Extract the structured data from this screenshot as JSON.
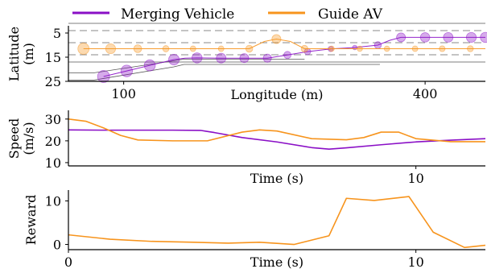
{
  "legend": [
    {
      "label": "Merging Vehicle",
      "color": "#8a0fc6"
    },
    {
      "label": "Guide AV",
      "color": "#f7941d"
    }
  ],
  "chart_data": [
    {
      "type": "scatter",
      "xlabel": "Longitude (m)",
      "ylabel": "Latitude\n(m)",
      "xlim": [
        45,
        460
      ],
      "ylim": [
        25,
        2
      ],
      "y_inverted": true,
      "xticks": [
        100,
        400
      ],
      "yticks": [
        5,
        15,
        25
      ],
      "lane_dashed": [
        4,
        9,
        14
      ],
      "lane_solid": [
        1,
        17
      ],
      "ramp_polyline_lower": [
        [
          45,
          24.5
        ],
        [
          70,
          24.5
        ],
        [
          150,
          19.0
        ],
        [
          160,
          18.0
        ],
        [
          355,
          18.0
        ]
      ],
      "ramp_polyline_upper": [
        [
          45,
          21.5
        ],
        [
          70,
          21.5
        ],
        [
          150,
          16.5
        ],
        [
          160,
          15.8
        ],
        [
          280,
          15.8
        ]
      ],
      "series": [
        {
          "name": "Merging Vehicle",
          "x": [
            80,
            103,
            126,
            150,
            173,
            197,
            220,
            243,
            263,
            283,
            306,
            330,
            353,
            376,
            400,
            423,
            446,
            460
          ],
          "y": [
            23.0,
            20.7,
            18.4,
            16.0,
            15.3,
            15.4,
            15.4,
            15.4,
            14.1,
            12.7,
            11.6,
            11.0,
            10.0,
            6.8,
            6.8,
            6.8,
            6.8,
            6.8
          ],
          "marker_size": [
            1.0,
            0.96,
            0.92,
            0.88,
            0.84,
            0.8,
            0.74,
            0.68,
            0.6,
            0.52,
            0.44,
            0.38,
            0.58,
            0.74,
            0.78,
            0.8,
            0.82,
            0.84
          ],
          "line": {
            "x": [
              80,
              103,
              126,
              150,
              161,
              173,
              197,
              220,
              243,
              263,
              283,
              306,
              330,
              353,
              365,
              376,
              400,
              423,
              446,
              460
            ],
            "y": [
              23.0,
              20.7,
              18.4,
              16.0,
              15.4,
              15.3,
              15.4,
              15.4,
              15.4,
              14.1,
              12.7,
              11.6,
              11.0,
              10.0,
              8.0,
              6.8,
              6.8,
              6.8,
              6.8,
              6.8
            ]
          }
        },
        {
          "name": "Guide AV",
          "x": [
            60,
            87,
            114,
            142,
            169,
            197,
            225,
            252,
            280,
            307,
            335,
            362,
            390,
            417,
            445
          ],
          "y": [
            11.5,
            11.5,
            11.5,
            11.5,
            11.5,
            11.5,
            11.5,
            7.5,
            11.5,
            11.5,
            11.5,
            11.5,
            11.5,
            11.5,
            11.5
          ],
          "marker_size": [
            1.0,
            0.88,
            0.7,
            0.56,
            0.5,
            0.5,
            0.62,
            0.8,
            0.6,
            0.48,
            0.48,
            0.48,
            0.5,
            0.52,
            0.54
          ],
          "line": {
            "x": [
              60,
              87,
              114,
              142,
              169,
              197,
              225,
              240,
              252,
              266,
              280,
              307,
              335,
              362,
              390,
              417,
              445,
              460
            ],
            "y": [
              11.5,
              11.5,
              11.5,
              11.5,
              11.5,
              11.5,
              11.5,
              8.5,
              7.5,
              8.5,
              11.5,
              11.5,
              11.5,
              11.5,
              11.5,
              11.5,
              11.5,
              11.5
            ]
          }
        }
      ]
    },
    {
      "type": "line",
      "xlabel": "Time (s)",
      "ylabel": "Speed\n(m/s)",
      "xlim": [
        0,
        12
      ],
      "ylim": [
        8.5,
        34
      ],
      "xticks": [
        10
      ],
      "yticks": [
        10,
        20,
        30
      ],
      "series": [
        {
          "name": "Merging Vehicle",
          "x": [
            0,
            1,
            2,
            3,
            3.8,
            4.2,
            5,
            6,
            7,
            7.5,
            8,
            9,
            10,
            11,
            12
          ],
          "y": [
            25.0,
            24.9,
            24.9,
            24.9,
            24.8,
            23.8,
            21.5,
            19.5,
            16.9,
            16.2,
            16.8,
            18.2,
            19.5,
            20.3,
            21.0
          ]
        },
        {
          "name": "Guide AV",
          "x": [
            0,
            0.5,
            1,
            1.5,
            2,
            3,
            4,
            5,
            5.5,
            6,
            7,
            8,
            8.5,
            9,
            9.5,
            10,
            11,
            12
          ],
          "y": [
            30.0,
            29.0,
            26.0,
            22.5,
            20.4,
            20.0,
            20.0,
            24.0,
            25.0,
            24.5,
            21.0,
            20.5,
            21.5,
            24.0,
            24.0,
            21.0,
            19.6,
            19.6
          ]
        }
      ]
    },
    {
      "type": "line",
      "xlabel": "Time (s)",
      "ylabel": "Reward",
      "xlim": [
        0,
        12
      ],
      "ylim": [
        -1.2,
        12.5
      ],
      "xticks": [
        0,
        10
      ],
      "yticks": [
        0,
        10
      ],
      "series": [
        {
          "x": [
            0,
            1.2,
            2.4,
            3.6,
            4.6,
            5.5,
            6.5,
            7.5,
            8.0,
            8.8,
            9.8,
            10.5,
            11.4,
            12
          ],
          "y": [
            2.2,
            1.2,
            0.7,
            0.5,
            0.3,
            0.5,
            0.0,
            2.0,
            10.6,
            10.1,
            11.0,
            2.8,
            -0.7,
            -0.2
          ]
        }
      ]
    }
  ]
}
